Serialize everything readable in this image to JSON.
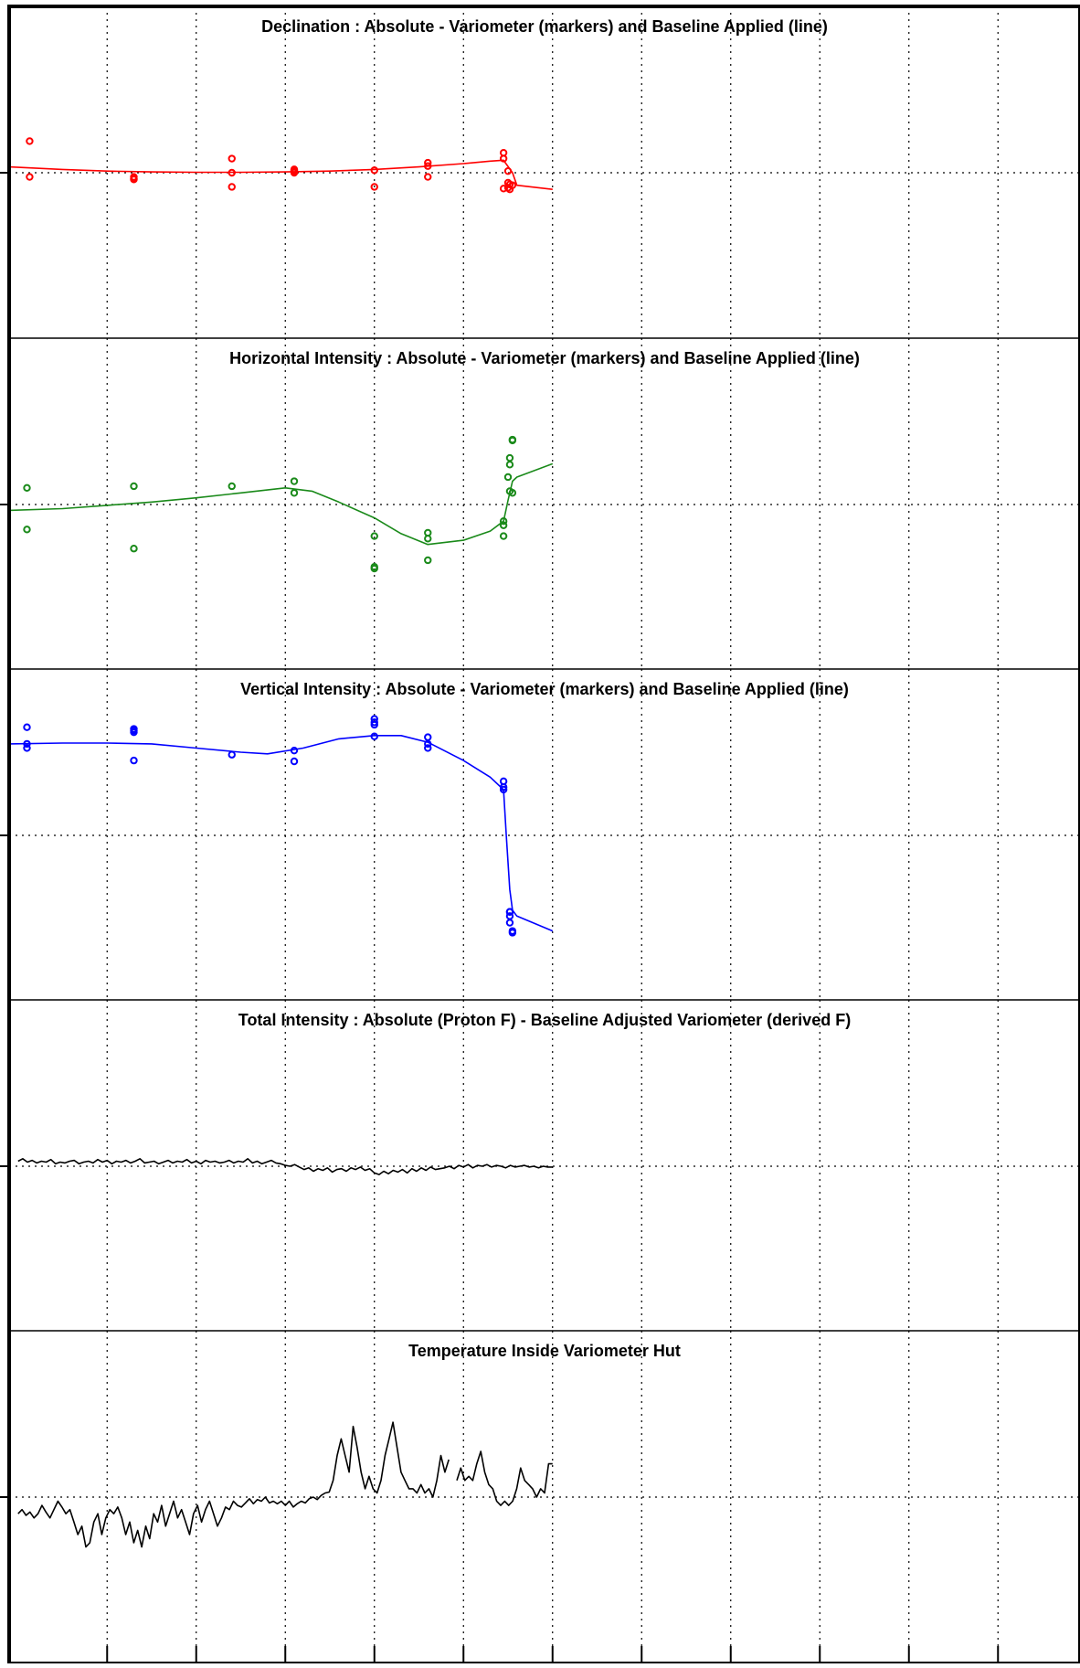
{
  "chart_data": [
    {
      "type": "scatter",
      "title": "Declination : Absolute - Variometer (markers) and Baseline Applied (line)",
      "xlim": [
        -0.1,
        11.9
      ],
      "ylim": [
        -2,
        2
      ],
      "x_ticks": [
        1,
        2,
        3,
        4,
        5,
        6,
        7,
        8,
        9,
        10,
        11
      ],
      "y_ticks": [
        0
      ],
      "grid": true,
      "series": [
        {
          "kind": "markers",
          "color": "#ff0000",
          "x": [
            0.13,
            0.13,
            1.3,
            1.3,
            1.3,
            2.4,
            2.4,
            2.4,
            3.1,
            3.1,
            3.1,
            3.1,
            3.1,
            4.0,
            4.0,
            4.6,
            4.6,
            4.6,
            5.45,
            5.45,
            5.45,
            5.5,
            5.5,
            5.5,
            5.52,
            5.55,
            5.52
          ],
          "y": [
            0.38,
            -0.05,
            -0.05,
            -0.07,
            -0.08,
            0.17,
            0.0,
            -0.17,
            0.02,
            0.04,
            0.0,
            0.03,
            0.01,
            0.03,
            -0.17,
            0.12,
            0.08,
            -0.05,
            0.24,
            0.17,
            -0.19,
            0.02,
            -0.12,
            -0.18,
            -0.14,
            -0.15,
            -0.2
          ]
        },
        {
          "kind": "line",
          "color": "#ff0000",
          "x": [
            -0.1,
            0.5,
            1.0,
            1.5,
            2.0,
            2.5,
            3.0,
            3.5,
            4.0,
            4.5,
            5.0,
            5.3,
            5.45,
            5.47,
            5.55,
            5.6,
            6.0
          ],
          "y": [
            0.07,
            0.04,
            0.02,
            0.01,
            0.005,
            0.005,
            0.01,
            0.02,
            0.04,
            0.07,
            0.11,
            0.14,
            0.15,
            0.12,
            0.0,
            -0.15,
            -0.2
          ]
        }
      ]
    },
    {
      "type": "scatter",
      "title": "Horizontal Intensity : Absolute - Variometer (markers) and Baseline Applied (line)",
      "xlim": [
        -0.1,
        11.9
      ],
      "ylim": [
        -2,
        2
      ],
      "x_ticks": [
        1,
        2,
        3,
        4,
        5,
        6,
        7,
        8,
        9,
        10,
        11
      ],
      "y_ticks": [
        0
      ],
      "grid": true,
      "series": [
        {
          "kind": "markers",
          "color": "#1a8a1a",
          "x": [
            0.1,
            0.1,
            1.3,
            1.3,
            2.4,
            3.1,
            3.1,
            4.0,
            4.0,
            4.0,
            4.6,
            4.6,
            4.6,
            5.45,
            5.45,
            5.45,
            5.5,
            5.52,
            5.52,
            5.52,
            5.55,
            5.55,
            5.55
          ],
          "y": [
            0.2,
            -0.3,
            0.22,
            -0.53,
            0.22,
            0.28,
            0.14,
            -0.38,
            -0.75,
            -0.77,
            -0.34,
            -0.41,
            -0.67,
            -0.2,
            -0.25,
            -0.38,
            0.33,
            0.56,
            0.48,
            0.16,
            0.14,
            0.77,
            0.78
          ]
        },
        {
          "kind": "line",
          "color": "#1a8a1a",
          "x": [
            -0.1,
            0.5,
            1.0,
            1.5,
            2.0,
            2.5,
            3.0,
            3.3,
            3.6,
            4.0,
            4.3,
            4.6,
            5.0,
            5.3,
            5.45,
            5.47,
            5.5,
            5.55,
            5.6,
            6.0
          ],
          "y": [
            -0.07,
            -0.05,
            -0.01,
            0.03,
            0.08,
            0.14,
            0.2,
            0.16,
            0.03,
            -0.16,
            -0.35,
            -0.48,
            -0.43,
            -0.32,
            -0.2,
            -0.1,
            0.05,
            0.28,
            0.33,
            0.49
          ]
        }
      ]
    },
    {
      "type": "scatter",
      "title": "Vertical Intensity : Absolute - Variometer (markers) and Baseline Applied (line)",
      "xlim": [
        -0.1,
        11.9
      ],
      "ylim": [
        -2,
        2
      ],
      "x_ticks": [
        1,
        2,
        3,
        4,
        5,
        6,
        7,
        8,
        9,
        10,
        11
      ],
      "y_ticks": [
        0
      ],
      "grid": true,
      "series": [
        {
          "kind": "markers",
          "color": "#0000ff",
          "x": [
            0.1,
            0.1,
            0.1,
            1.3,
            1.3,
            1.3,
            1.3,
            2.4,
            3.1,
            3.1,
            4.0,
            4.0,
            4.0,
            4.0,
            4.6,
            4.6,
            4.6,
            5.45,
            5.45,
            5.45,
            5.52,
            5.52,
            5.52,
            5.55,
            5.52,
            5.55
          ],
          "y": [
            1.3,
            1.05,
            1.1,
            1.26,
            1.24,
            0.9,
            1.28,
            0.97,
            1.02,
            0.89,
            1.4,
            1.36,
            1.19,
            1.33,
            1.18,
            1.05,
            1.1,
            0.65,
            0.55,
            0.58,
            -0.92,
            -0.97,
            -1.05,
            -1.17,
            -0.92,
            -1.15
          ]
        },
        {
          "kind": "line",
          "color": "#0000ff",
          "x": [
            -0.1,
            0.5,
            1.0,
            1.5,
            2.0,
            2.5,
            2.8,
            3.2,
            3.6,
            4.0,
            4.3,
            4.6,
            5.0,
            5.3,
            5.45,
            5.48,
            5.52,
            5.55,
            5.6,
            6.0
          ],
          "y": [
            1.1,
            1.11,
            1.11,
            1.1,
            1.05,
            1.0,
            0.98,
            1.05,
            1.16,
            1.2,
            1.2,
            1.12,
            0.9,
            0.7,
            0.55,
            0.0,
            -0.65,
            -0.9,
            -0.97,
            -1.15
          ]
        }
      ]
    },
    {
      "type": "line",
      "title": "Total Intensity : Absolute (Proton F) - Baseline Adjusted Variometer (derived F)",
      "xlim": [
        -0.1,
        11.9
      ],
      "ylim": [
        -2,
        2
      ],
      "x_ticks": [
        1,
        2,
        3,
        4,
        5,
        6,
        7,
        8,
        9,
        10,
        11
      ],
      "y_ticks": [
        0
      ],
      "grid": true,
      "series": [
        {
          "kind": "line",
          "color": "#000000",
          "x_start": 0.0,
          "x_end": 6.0,
          "y": [
            0.06,
            0.09,
            0.05,
            0.07,
            0.04,
            0.06,
            0.05,
            0.08,
            0.03,
            0.05,
            0.04,
            0.06,
            0.07,
            0.03,
            0.05,
            0.06,
            0.04,
            0.08,
            0.05,
            0.07,
            0.03,
            0.06,
            0.05,
            0.07,
            0.04,
            0.06,
            0.09,
            0.04,
            0.05,
            0.06,
            0.03,
            0.05,
            0.07,
            0.04,
            0.06,
            0.05,
            0.08,
            0.04,
            0.06,
            0.03,
            0.07,
            0.05,
            0.06,
            0.04,
            0.05,
            0.07,
            0.04,
            0.06,
            0.05,
            0.09,
            0.04,
            0.06,
            0.03,
            0.05,
            0.07,
            0.04,
            0.03,
            0.01,
            0.0,
            0.02,
            -0.01,
            -0.04,
            -0.02,
            -0.06,
            -0.03,
            -0.05,
            -0.02,
            -0.07,
            -0.04,
            -0.03,
            -0.06,
            -0.02,
            -0.04,
            -0.01,
            -0.05,
            -0.03,
            -0.08,
            -0.1,
            -0.06,
            -0.09,
            -0.05,
            -0.07,
            -0.04,
            -0.08,
            -0.03,
            -0.06,
            -0.02,
            -0.05,
            -0.01,
            -0.04,
            -0.03,
            -0.02,
            0.0,
            -0.03,
            0.01,
            -0.01,
            0.02,
            -0.02,
            0.01,
            0.0,
            0.02,
            -0.01,
            0.01,
            0.0,
            -0.02,
            0.01,
            -0.01,
            0.0,
            0.01,
            -0.01,
            0.0,
            -0.02,
            0.0,
            -0.01,
            -0.01
          ]
        }
      ]
    },
    {
      "type": "line",
      "title": "Temperature Inside Variometer Hut",
      "xlim": [
        -0.1,
        11.9
      ],
      "ylim": [
        -2,
        2
      ],
      "x_ticks": [
        1,
        2,
        3,
        4,
        5,
        6,
        7,
        8,
        9,
        10,
        11
      ],
      "y_ticks": [
        0
      ],
      "grid": true,
      "series": [
        {
          "kind": "line",
          "color": "#000000",
          "x_start": 0.0,
          "x_end": 6.0,
          "gap_after_index": 108,
          "gap_resume_index": 110,
          "y": [
            -0.2,
            -0.15,
            -0.22,
            -0.18,
            -0.25,
            -0.2,
            -0.1,
            -0.18,
            -0.25,
            -0.15,
            -0.05,
            -0.12,
            -0.2,
            -0.15,
            -0.3,
            -0.45,
            -0.35,
            -0.6,
            -0.55,
            -0.3,
            -0.2,
            -0.45,
            -0.25,
            -0.15,
            -0.2,
            -0.12,
            -0.25,
            -0.45,
            -0.3,
            -0.55,
            -0.4,
            -0.6,
            -0.35,
            -0.5,
            -0.2,
            -0.3,
            -0.1,
            -0.35,
            -0.2,
            -0.05,
            -0.25,
            -0.15,
            -0.3,
            -0.45,
            -0.2,
            -0.1,
            -0.3,
            -0.15,
            -0.05,
            -0.2,
            -0.35,
            -0.25,
            -0.12,
            -0.15,
            -0.05,
            -0.1,
            -0.12,
            -0.07,
            -0.02,
            -0.08,
            -0.03,
            -0.05,
            0.0,
            -0.07,
            -0.05,
            -0.08,
            -0.05,
            -0.1,
            -0.05,
            -0.12,
            -0.08,
            -0.05,
            -0.07,
            -0.02,
            0.0,
            -0.03,
            0.02,
            0.05,
            0.06,
            0.2,
            0.5,
            0.7,
            0.5,
            0.3,
            0.85,
            0.6,
            0.3,
            0.1,
            0.25,
            0.1,
            0.05,
            0.2,
            0.5,
            0.7,
            0.9,
            0.6,
            0.3,
            0.2,
            0.1,
            0.1,
            0.05,
            0.15,
            0.05,
            0.1,
            0.0,
            0.2,
            0.5,
            0.3,
            0.45,
            0.1,
            0.2,
            0.35,
            0.2,
            0.25,
            0.2,
            0.4,
            0.55,
            0.3,
            0.15,
            0.1,
            -0.05,
            -0.1,
            -0.05,
            -0.1,
            -0.05,
            0.1,
            0.35,
            0.2,
            0.15,
            0.1,
            0.0,
            0.1,
            0.05,
            0.4,
            0.4
          ]
        }
      ]
    }
  ]
}
